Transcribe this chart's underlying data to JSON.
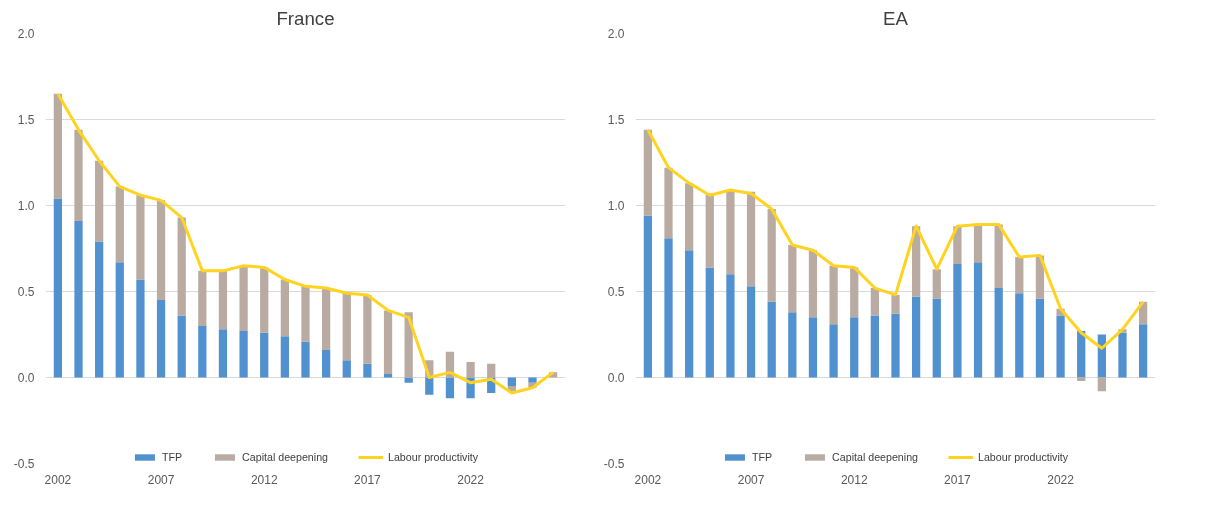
{
  "chart_data": [
    {
      "type": "bar",
      "title": "France",
      "stacked": true,
      "x": [
        2002,
        2003,
        2004,
        2005,
        2006,
        2007,
        2008,
        2009,
        2010,
        2011,
        2012,
        2013,
        2014,
        2015,
        2016,
        2017,
        2018,
        2019,
        2020,
        2021,
        2022,
        2023,
        2024,
        2025,
        2026
      ],
      "xlim": [
        2001.4,
        2026.6
      ],
      "xticks": [
        2002,
        2007,
        2012,
        2017,
        2022
      ],
      "ylim": [
        -0.5,
        2.0
      ],
      "yticks": [
        {
          "value": -0.5,
          "label": "-0.5"
        },
        {
          "value": 0,
          "label": "0.0"
        },
        {
          "value": 0.5,
          "label": "0.5"
        },
        {
          "value": 1.0,
          "label": "1.0"
        },
        {
          "value": 1.5,
          "label": "1.5"
        },
        {
          "value": 2.0,
          "label": "2.0"
        }
      ],
      "grid": "y",
      "legend": "bottom",
      "series": [
        {
          "name": "TFP",
          "color": "#5191cf",
          "values": [
            1.04,
            0.91,
            0.79,
            0.67,
            0.57,
            0.45,
            0.36,
            0.3,
            0.28,
            0.27,
            0.26,
            0.24,
            0.21,
            0.16,
            0.1,
            0.08,
            0.02,
            -0.03,
            -0.1,
            -0.12,
            -0.12,
            -0.09,
            -0.05,
            -0.03,
            0.0
          ]
        },
        {
          "name": "Capital deepening",
          "color": "#b9aba2",
          "values": [
            0.61,
            0.53,
            0.47,
            0.44,
            0.49,
            0.58,
            0.57,
            0.32,
            0.34,
            0.38,
            0.38,
            0.33,
            0.32,
            0.36,
            0.39,
            0.4,
            0.37,
            0.38,
            0.1,
            0.15,
            0.09,
            0.08,
            -0.03,
            -0.03,
            0.03
          ]
        },
        {
          "name": "Labour productivity",
          "type": "line",
          "color": "#ffd320",
          "values": [
            1.65,
            1.44,
            1.26,
            1.11,
            1.06,
            1.03,
            0.93,
            0.62,
            0.62,
            0.65,
            0.64,
            0.57,
            0.53,
            0.52,
            0.49,
            0.48,
            0.39,
            0.35,
            0.0,
            0.03,
            -0.03,
            -0.01,
            -0.09,
            -0.06,
            0.03
          ]
        }
      ]
    },
    {
      "type": "bar",
      "title": "EA",
      "stacked": true,
      "x": [
        2002,
        2003,
        2004,
        2005,
        2006,
        2007,
        2008,
        2009,
        2010,
        2011,
        2012,
        2013,
        2014,
        2015,
        2016,
        2017,
        2018,
        2019,
        2020,
        2021,
        2022,
        2023,
        2024,
        2025,
        2026
      ],
      "xlim": [
        2001.4,
        2026.6
      ],
      "xticks": [
        2002,
        2007,
        2012,
        2017,
        2022
      ],
      "ylim": [
        -0.5,
        2.0
      ],
      "yticks": [
        {
          "value": -0.5,
          "label": "-0.5"
        },
        {
          "value": 0,
          "label": "0.0"
        },
        {
          "value": 0.5,
          "label": "0.5"
        },
        {
          "value": 1.0,
          "label": "1.0"
        },
        {
          "value": 1.5,
          "label": "1.5"
        },
        {
          "value": 2.0,
          "label": "2.0"
        }
      ],
      "grid": "y",
      "legend": "bottom",
      "series": [
        {
          "name": "TFP",
          "color": "#5191cf",
          "values": [
            0.94,
            0.81,
            0.74,
            0.64,
            0.6,
            0.53,
            0.44,
            0.38,
            0.35,
            0.31,
            0.35,
            0.36,
            0.37,
            0.47,
            0.46,
            0.66,
            0.67,
            0.52,
            0.49,
            0.46,
            0.36,
            0.27,
            0.25,
            0.26,
            0.31
          ]
        },
        {
          "name": "Capital deepening",
          "color": "#b9aba2",
          "values": [
            0.5,
            0.41,
            0.39,
            0.43,
            0.49,
            0.55,
            0.54,
            0.39,
            0.39,
            0.34,
            0.29,
            0.16,
            0.11,
            0.41,
            0.17,
            0.22,
            0.22,
            0.37,
            0.21,
            0.25,
            0.04,
            -0.02,
            -0.08,
            0.02,
            0.13
          ]
        },
        {
          "name": "Labour productivity",
          "type": "line",
          "color": "#ffd320",
          "values": [
            1.44,
            1.22,
            1.13,
            1.06,
            1.09,
            1.07,
            0.98,
            0.77,
            0.74,
            0.65,
            0.64,
            0.52,
            0.48,
            0.88,
            0.63,
            0.88,
            0.89,
            0.89,
            0.7,
            0.71,
            0.4,
            0.26,
            0.17,
            0.28,
            0.44
          ]
        }
      ]
    }
  ]
}
